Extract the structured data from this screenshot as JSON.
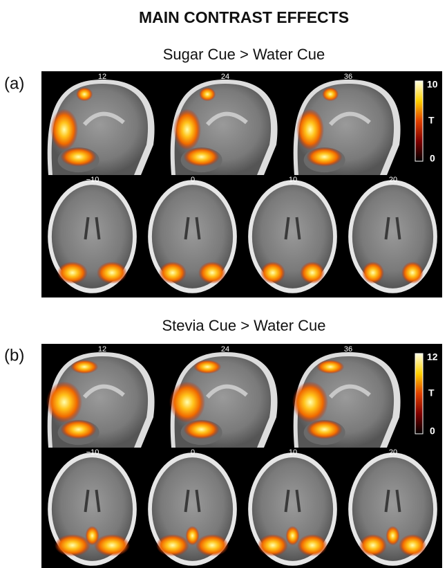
{
  "title": "MAIN CONTRAST EFFECTS",
  "panels": [
    {
      "label": "(a)",
      "heading": "Sugar Cue > Water Cue",
      "sagittal_slices": [
        "12",
        "24",
        "36"
      ],
      "axial_slices": [
        "−10",
        "0",
        "10",
        "20"
      ],
      "colorbar": {
        "max": "10",
        "label": "T",
        "min": "0"
      }
    },
    {
      "label": "(b)",
      "heading": "Stevia Cue > Water Cue",
      "sagittal_slices": [
        "12",
        "24",
        "36"
      ],
      "axial_slices": [
        "−10",
        "0",
        "10",
        "20"
      ],
      "colorbar": {
        "max": "12",
        "label": "T",
        "min": "0"
      }
    }
  ]
}
